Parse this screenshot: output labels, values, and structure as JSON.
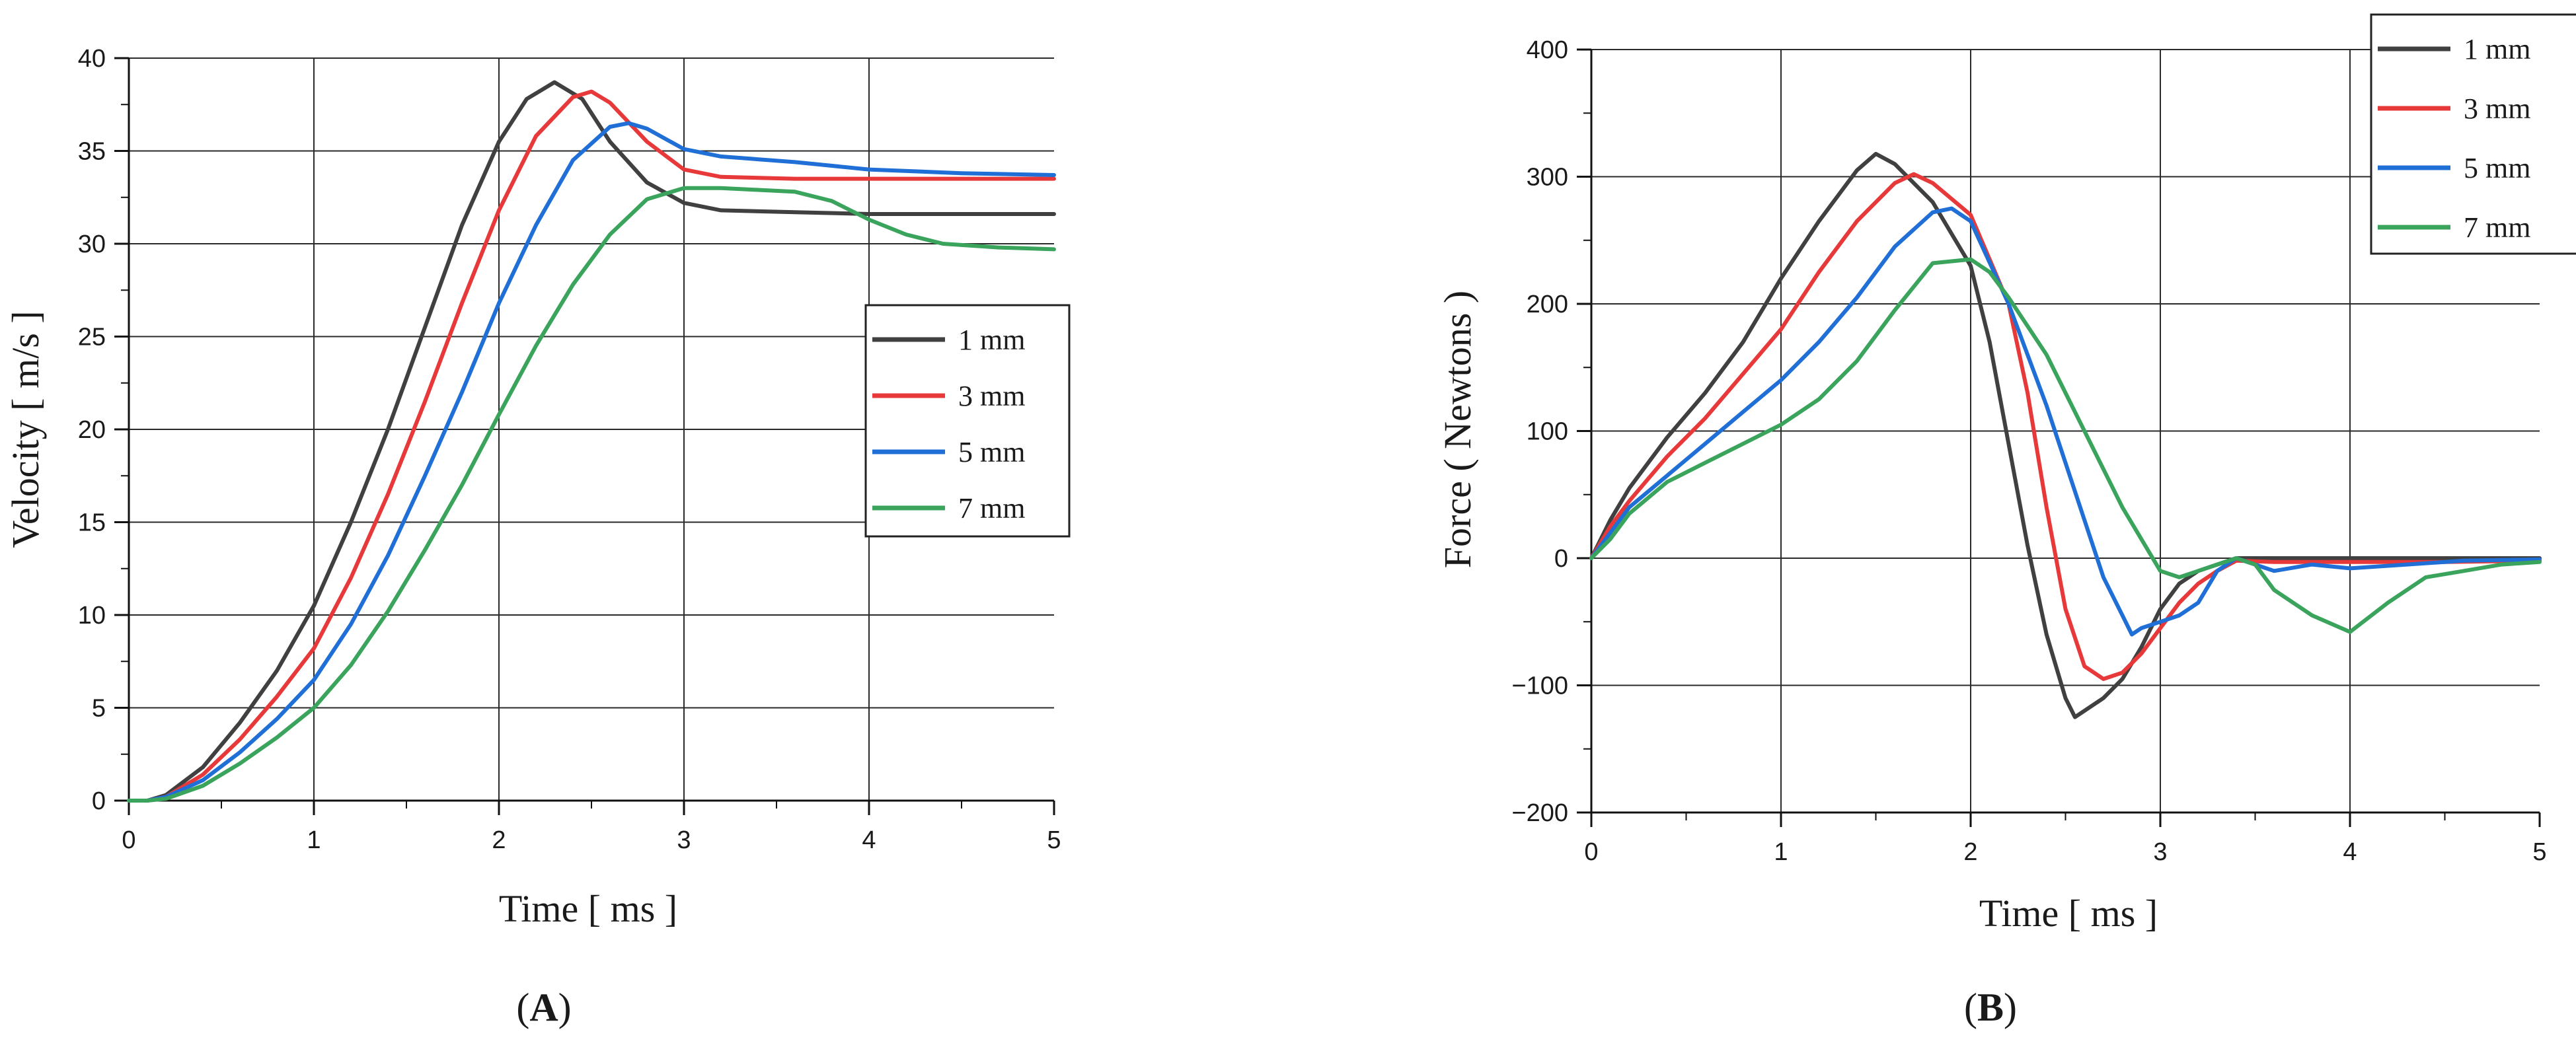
{
  "chart_data": [
    {
      "type": "line",
      "panel_label": "A",
      "title": "",
      "xlabel": "Time [ ms ]",
      "ylabel": "Velocity [ m/s ]",
      "xlim": [
        0,
        5
      ],
      "ylim": [
        0,
        40
      ],
      "xticks": [
        0,
        1,
        2,
        3,
        4,
        5
      ],
      "yticks": [
        0,
        5,
        10,
        15,
        20,
        25,
        30,
        35,
        40
      ],
      "grid": true,
      "legend_position": "right",
      "series": [
        {
          "name": "1 mm",
          "color": "#404040",
          "x": [
            0,
            0.1,
            0.2,
            0.4,
            0.6,
            0.8,
            1.0,
            1.2,
            1.4,
            1.6,
            1.8,
            2.0,
            2.15,
            2.3,
            2.45,
            2.6,
            2.8,
            3.0,
            3.2,
            3.6,
            4.0,
            4.5,
            5.0
          ],
          "y": [
            0,
            0,
            0.3,
            1.8,
            4.2,
            7.0,
            10.5,
            15.0,
            20.0,
            25.5,
            31.0,
            35.5,
            37.8,
            38.7,
            37.8,
            35.5,
            33.3,
            32.2,
            31.8,
            31.7,
            31.6,
            31.6,
            31.6
          ]
        },
        {
          "name": "3 mm",
          "color": "#e8393a",
          "x": [
            0,
            0.1,
            0.2,
            0.4,
            0.6,
            0.8,
            1.0,
            1.2,
            1.4,
            1.6,
            1.8,
            2.0,
            2.2,
            2.4,
            2.5,
            2.6,
            2.8,
            3.0,
            3.2,
            3.6,
            4.0,
            4.5,
            5.0
          ],
          "y": [
            0,
            0,
            0.2,
            1.4,
            3.3,
            5.6,
            8.2,
            12.0,
            16.5,
            21.5,
            26.8,
            31.8,
            35.8,
            37.9,
            38.2,
            37.6,
            35.5,
            34.0,
            33.6,
            33.5,
            33.5,
            33.5,
            33.5
          ]
        },
        {
          "name": "5 mm",
          "color": "#1f6fd6",
          "x": [
            0,
            0.1,
            0.2,
            0.4,
            0.6,
            0.8,
            1.0,
            1.2,
            1.4,
            1.6,
            1.8,
            2.0,
            2.2,
            2.4,
            2.6,
            2.7,
            2.8,
            3.0,
            3.2,
            3.6,
            4.0,
            4.5,
            5.0
          ],
          "y": [
            0,
            0,
            0.2,
            1.1,
            2.6,
            4.4,
            6.5,
            9.5,
            13.2,
            17.5,
            22.0,
            26.8,
            31.0,
            34.5,
            36.3,
            36.5,
            36.2,
            35.1,
            34.7,
            34.4,
            34.0,
            33.8,
            33.7
          ]
        },
        {
          "name": "7 mm",
          "color": "#3aa35c",
          "x": [
            0,
            0.1,
            0.2,
            0.4,
            0.6,
            0.8,
            1.0,
            1.2,
            1.4,
            1.6,
            1.8,
            2.0,
            2.2,
            2.4,
            2.6,
            2.8,
            3.0,
            3.2,
            3.4,
            3.6,
            3.8,
            4.0,
            4.2,
            4.4,
            4.7,
            5.0
          ],
          "y": [
            0,
            0,
            0.1,
            0.8,
            2.0,
            3.4,
            5.0,
            7.3,
            10.2,
            13.5,
            17.0,
            20.8,
            24.5,
            27.8,
            30.5,
            32.4,
            33.0,
            33.0,
            32.9,
            32.8,
            32.3,
            31.3,
            30.5,
            30.0,
            29.8,
            29.7
          ]
        }
      ]
    },
    {
      "type": "line",
      "panel_label": "B",
      "title": "",
      "xlabel": "Time [ ms ]",
      "ylabel": "Force ( Newtons )",
      "xlim": [
        0,
        5
      ],
      "ylim": [
        -200,
        400
      ],
      "xticks": [
        0,
        1,
        2,
        3,
        4,
        5
      ],
      "yticks": [
        -200,
        -100,
        0,
        100,
        200,
        300,
        400
      ],
      "grid": true,
      "legend_position": "top-right",
      "series": [
        {
          "name": "1 mm",
          "color": "#404040",
          "x": [
            0,
            0.1,
            0.2,
            0.4,
            0.6,
            0.8,
            1.0,
            1.2,
            1.4,
            1.5,
            1.6,
            1.8,
            2.0,
            2.1,
            2.2,
            2.3,
            2.4,
            2.5,
            2.55,
            2.6,
            2.7,
            2.8,
            2.9,
            3.0,
            3.1,
            3.2,
            3.3,
            3.4,
            3.6,
            4.0,
            4.5,
            5.0
          ],
          "y": [
            0,
            30,
            55,
            95,
            130,
            170,
            220,
            265,
            305,
            318,
            310,
            280,
            230,
            170,
            90,
            10,
            -60,
            -110,
            -125,
            -120,
            -110,
            -95,
            -70,
            -40,
            -20,
            -10,
            -5,
            0,
            0,
            0,
            0,
            0
          ]
        },
        {
          "name": "3 mm",
          "color": "#e8393a",
          "x": [
            0,
            0.1,
            0.2,
            0.4,
            0.6,
            0.8,
            1.0,
            1.2,
            1.4,
            1.6,
            1.7,
            1.8,
            2.0,
            2.2,
            2.3,
            2.4,
            2.5,
            2.6,
            2.7,
            2.8,
            2.9,
            3.0,
            3.1,
            3.2,
            3.3,
            3.4,
            3.6,
            4.0,
            4.5,
            5.0
          ],
          "y": [
            0,
            25,
            45,
            80,
            110,
            145,
            180,
            225,
            265,
            295,
            302,
            295,
            270,
            200,
            130,
            40,
            -40,
            -85,
            -95,
            -90,
            -75,
            -55,
            -35,
            -20,
            -10,
            -2,
            -3,
            -3,
            -3,
            -2
          ]
        },
        {
          "name": "5 mm",
          "color": "#1f6fd6",
          "x": [
            0,
            0.1,
            0.2,
            0.4,
            0.6,
            0.8,
            1.0,
            1.2,
            1.4,
            1.6,
            1.8,
            1.9,
            2.0,
            2.2,
            2.4,
            2.6,
            2.7,
            2.8,
            2.85,
            2.9,
            3.0,
            3.1,
            3.2,
            3.3,
            3.4,
            3.6,
            3.8,
            4.0,
            4.3,
            4.6,
            5.0
          ],
          "y": [
            0,
            20,
            40,
            65,
            90,
            115,
            140,
            170,
            205,
            245,
            272,
            275,
            265,
            200,
            120,
            30,
            -15,
            -45,
            -60,
            -55,
            -50,
            -45,
            -35,
            -10,
            0,
            -10,
            -5,
            -8,
            -5,
            -2,
            -1
          ]
        },
        {
          "name": "7 mm",
          "color": "#3aa35c",
          "x": [
            0,
            0.1,
            0.2,
            0.4,
            0.6,
            0.8,
            1.0,
            1.2,
            1.4,
            1.6,
            1.8,
            2.0,
            2.1,
            2.2,
            2.4,
            2.6,
            2.8,
            3.0,
            3.1,
            3.2,
            3.3,
            3.4,
            3.5,
            3.6,
            3.8,
            4.0,
            4.2,
            4.4,
            4.6,
            4.8,
            5.0
          ],
          "y": [
            0,
            15,
            35,
            60,
            75,
            90,
            105,
            125,
            155,
            195,
            232,
            235,
            225,
            205,
            160,
            100,
            40,
            -10,
            -15,
            -10,
            -5,
            0,
            -5,
            -25,
            -45,
            -58,
            -35,
            -15,
            -10,
            -5,
            -3
          ]
        }
      ]
    }
  ]
}
